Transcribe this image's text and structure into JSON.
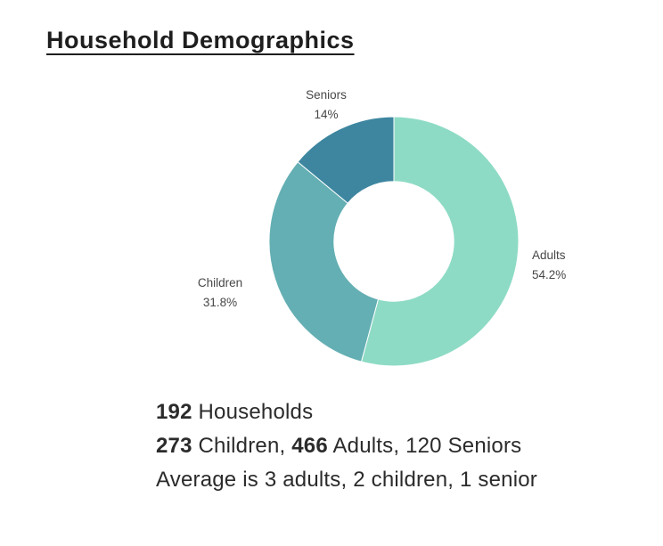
{
  "page": {
    "title": "Household Demographics",
    "background": "#ffffff"
  },
  "chart_data": {
    "type": "pie",
    "subtype": "donut",
    "title": "Household Demographics",
    "slices": [
      {
        "name": "Adults",
        "value": 54.2,
        "pct_label": "54.2%",
        "color": "#8EDBC5"
      },
      {
        "name": "Children",
        "value": 31.8,
        "pct_label": "31.8%",
        "color": "#64AFB3"
      },
      {
        "name": "Seniors",
        "value": 14,
        "pct_label": "14%",
        "color": "#3E86A0"
      }
    ],
    "start_angle_deg": 0,
    "direction": "clockwise",
    "inner_radius_ratio": 0.48,
    "stroke": "#ffffff",
    "legend_position": "none",
    "label_style": "category name above percent, outside slices"
  },
  "stats": {
    "line1": [
      {
        "text": "192",
        "bold": true
      },
      {
        "text": " Households",
        "bold": false
      }
    ],
    "line2": [
      {
        "text": "273",
        "bold": true
      },
      {
        "text": " Children, ",
        "bold": false
      },
      {
        "text": "466",
        "bold": true
      },
      {
        "text": " Adults, 120 Seniors",
        "bold": false
      }
    ],
    "line3": "Average is 3 adults, 2 children, 1 senior"
  }
}
